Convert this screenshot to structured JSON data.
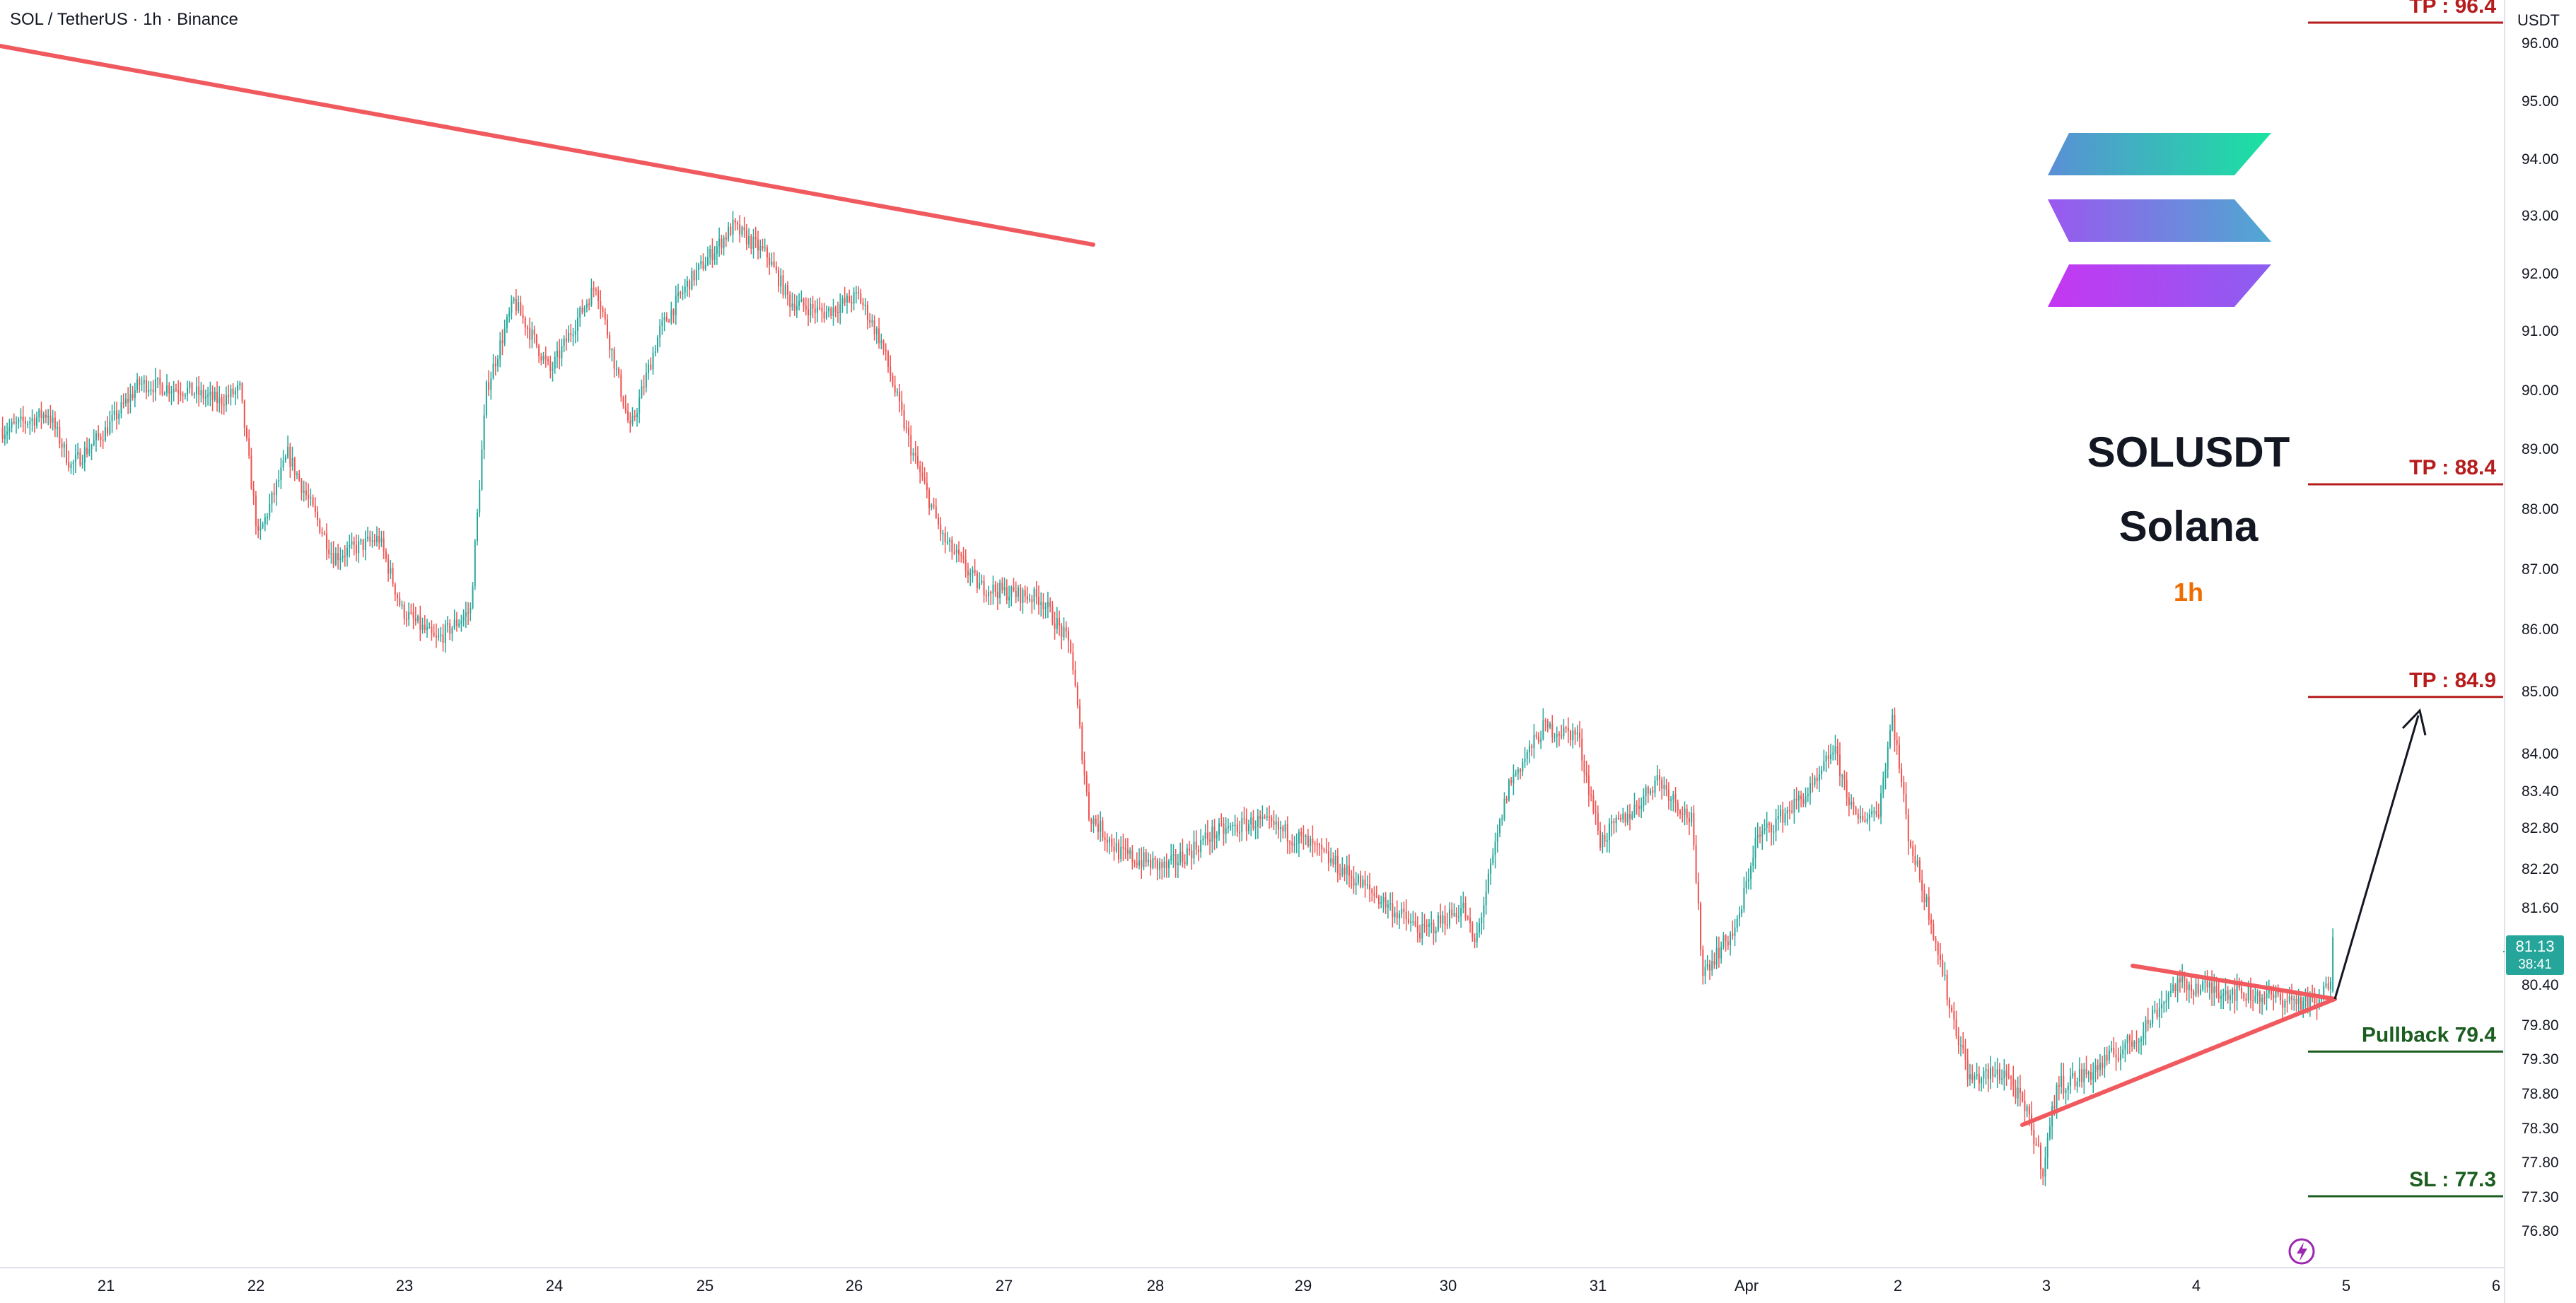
{
  "header": {
    "symbol": "SOL / TetherUS · 1h · Binance"
  },
  "price_axis": {
    "unit": "USDT",
    "labels": [
      "96.00",
      "95.00",
      "94.00",
      "93.00",
      "92.00",
      "91.00",
      "90.00",
      "89.00",
      "88.00",
      "87.00",
      "86.00",
      "85.00",
      "84.00",
      "83.40",
      "82.80",
      "82.20",
      "81.60",
      "80.40",
      "79.80",
      "79.30",
      "78.80",
      "78.30",
      "77.80",
      "77.30",
      "76.80"
    ],
    "current_price": "81.13",
    "countdown": "38:41"
  },
  "time_axis": {
    "labels": [
      "21",
      "22",
      "23",
      "24",
      "25",
      "26",
      "27",
      "28",
      "29",
      "30",
      "31",
      "Apr",
      "2",
      "3",
      "4",
      "5",
      "6"
    ]
  },
  "overlay": {
    "ticker": "SOLUSDT",
    "name": "Solana",
    "timeframe": "1h"
  },
  "levels": [
    {
      "label": "TP : 96.4",
      "price": 96.4,
      "color": "#b71c1c"
    },
    {
      "label": "TP : 88.4",
      "price": 88.4,
      "color": "#b71c1c"
    },
    {
      "label": "TP : 84.9",
      "price": 84.9,
      "color": "#b71c1c"
    },
    {
      "label": "Pullback 79.4",
      "price": 79.4,
      "color": "#1b5e20"
    },
    {
      "label": "SL : 77.3",
      "price": 77.3,
      "color": "#1b5e20"
    }
  ],
  "colors": {
    "up": "#26a69a",
    "down": "#ef5350",
    "trendline": "#f05a5f",
    "current_price_bg": "#26a69a",
    "timeframe_text": "#ef6c00"
  },
  "chart_data": {
    "type": "candlestick",
    "title": "SOL / TetherUS · 1h · Binance",
    "ylabel": "USDT",
    "ylim": [
      76.6,
      96.4
    ],
    "x_ticks": [
      "21",
      "22",
      "23",
      "24",
      "25",
      "26",
      "27",
      "28",
      "29",
      "30",
      "31",
      "Apr",
      "2",
      "3",
      "4",
      "5",
      "6"
    ],
    "anchors": [
      {
        "t": 0,
        "p": 89.3
      },
      {
        "t": 20,
        "p": 89.6
      },
      {
        "t": 30,
        "p": 88.7
      },
      {
        "t": 45,
        "p": 89.3
      },
      {
        "t": 60,
        "p": 90.1
      },
      {
        "t": 80,
        "p": 90.0
      },
      {
        "t": 95,
        "p": 89.8
      },
      {
        "t": 104,
        "p": 90.0
      },
      {
        "t": 112,
        "p": 87.5
      },
      {
        "t": 125,
        "p": 88.9
      },
      {
        "t": 145,
        "p": 87.2
      },
      {
        "t": 165,
        "p": 87.5
      },
      {
        "t": 175,
        "p": 86.3
      },
      {
        "t": 190,
        "p": 85.8
      },
      {
        "t": 205,
        "p": 86.3
      },
      {
        "t": 212,
        "p": 90.0
      },
      {
        "t": 224,
        "p": 91.5
      },
      {
        "t": 240,
        "p": 90.3
      },
      {
        "t": 260,
        "p": 91.8
      },
      {
        "t": 275,
        "p": 89.3
      },
      {
        "t": 288,
        "p": 91.0
      },
      {
        "t": 300,
        "p": 91.8
      },
      {
        "t": 320,
        "p": 92.8
      },
      {
        "t": 335,
        "p": 92.3
      },
      {
        "t": 345,
        "p": 91.5
      },
      {
        "t": 360,
        "p": 91.3
      },
      {
        "t": 375,
        "p": 91.6
      },
      {
        "t": 385,
        "p": 90.8
      },
      {
        "t": 398,
        "p": 89.0
      },
      {
        "t": 412,
        "p": 87.5
      },
      {
        "t": 428,
        "p": 86.7
      },
      {
        "t": 440,
        "p": 86.6
      },
      {
        "t": 455,
        "p": 86.5
      },
      {
        "t": 468,
        "p": 85.7
      },
      {
        "t": 476,
        "p": 83.0
      },
      {
        "t": 490,
        "p": 82.4
      },
      {
        "t": 510,
        "p": 82.2
      },
      {
        "t": 530,
        "p": 82.7
      },
      {
        "t": 550,
        "p": 82.9
      },
      {
        "t": 570,
        "p": 82.6
      },
      {
        "t": 590,
        "p": 82.1
      },
      {
        "t": 608,
        "p": 81.6
      },
      {
        "t": 622,
        "p": 81.2
      },
      {
        "t": 640,
        "p": 81.6
      },
      {
        "t": 645,
        "p": 81.0
      },
      {
        "t": 660,
        "p": 83.5
      },
      {
        "t": 675,
        "p": 84.4
      },
      {
        "t": 690,
        "p": 84.3
      },
      {
        "t": 700,
        "p": 82.6
      },
      {
        "t": 715,
        "p": 83.1
      },
      {
        "t": 725,
        "p": 83.6
      },
      {
        "t": 740,
        "p": 82.9
      },
      {
        "t": 745,
        "p": 80.6
      },
      {
        "t": 760,
        "p": 81.3
      },
      {
        "t": 768,
        "p": 82.6
      },
      {
        "t": 780,
        "p": 83.0
      },
      {
        "t": 795,
        "p": 83.5
      },
      {
        "t": 802,
        "p": 84.1
      },
      {
        "t": 812,
        "p": 82.9
      },
      {
        "t": 822,
        "p": 83.1
      },
      {
        "t": 828,
        "p": 84.6
      },
      {
        "t": 835,
        "p": 82.7
      },
      {
        "t": 845,
        "p": 81.4
      },
      {
        "t": 853,
        "p": 80.1
      },
      {
        "t": 862,
        "p": 79.0
      },
      {
        "t": 878,
        "p": 79.1
      },
      {
        "t": 888,
        "p": 78.4
      },
      {
        "t": 894,
        "p": 77.7
      },
      {
        "t": 900,
        "p": 78.9
      },
      {
        "t": 915,
        "p": 79.1
      },
      {
        "t": 935,
        "p": 79.6
      },
      {
        "t": 952,
        "p": 80.4
      },
      {
        "t": 975,
        "p": 80.3
      },
      {
        "t": 995,
        "p": 80.2
      },
      {
        "t": 1015,
        "p": 80.1
      },
      {
        "t": 1021,
        "p": 80.6
      }
    ],
    "last": {
      "open": 80.3,
      "high": 81.3,
      "low": 80.1,
      "close": 81.13
    }
  }
}
